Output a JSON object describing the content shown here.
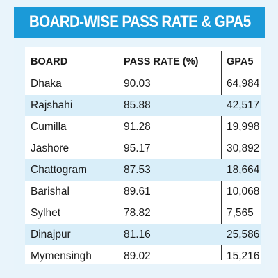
{
  "chart_data": {
    "type": "table",
    "title": "BOARD-WISE PASS RATE & GPA5",
    "columns": [
      "BOARD",
      "PASS RATE (%)",
      "GPA5"
    ],
    "rows": [
      [
        "Dhaka",
        "90.03",
        "64,984"
      ],
      [
        "Rajshahi",
        "85.88",
        "42,517"
      ],
      [
        "Cumilla",
        "91.28",
        "19,998"
      ],
      [
        "Jashore",
        "95.17",
        "30,892"
      ],
      [
        "Chattogram",
        "87.53",
        "18,664"
      ],
      [
        "Barishal",
        "89.61",
        "10,068"
      ],
      [
        "Sylhet",
        "78.82",
        "7,565"
      ],
      [
        "Dinajpur",
        "81.16",
        "25,586"
      ],
      [
        "Mymensingh",
        "89.02",
        "15,216"
      ]
    ]
  },
  "colors": {
    "banner": "#1b9ad8",
    "stripe": "#d9eef9",
    "background": "#e8f4fb"
  }
}
